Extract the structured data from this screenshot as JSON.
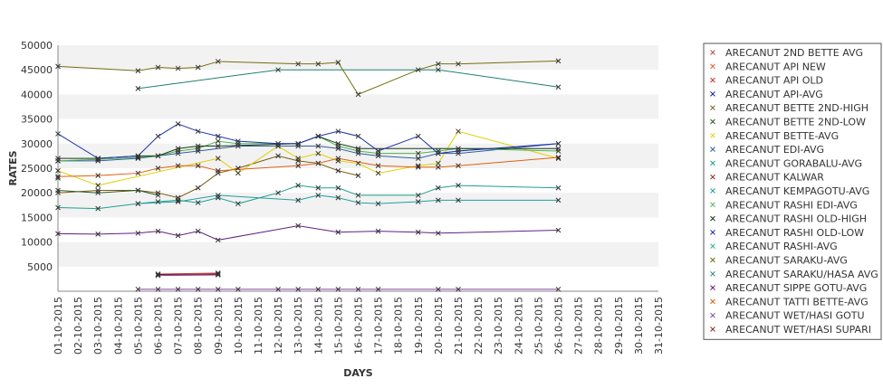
{
  "chart_data": {
    "type": "line",
    "xlabel": "DAYS",
    "ylabel": "RATES",
    "ylim": [
      0,
      50000
    ],
    "y_ticks": [
      5000,
      10000,
      15000,
      20000,
      25000,
      30000,
      35000,
      40000,
      45000,
      50000
    ],
    "x": [
      "01-10-2015",
      "02-10-2015",
      "03-10-2015",
      "04-10-2015",
      "05-10-2015",
      "06-10-2015",
      "07-10-2015",
      "08-10-2015",
      "09-10-2015",
      "10-10-2015",
      "11-10-2015",
      "12-10-2015",
      "13-10-2015",
      "14-10-2015",
      "15-10-2015",
      "16-10-2015",
      "17-10-2015",
      "18-10-2015",
      "19-10-2015",
      "20-10-2015",
      "21-10-2015",
      "22-10-2015",
      "23-10-2015",
      "24-10-2015",
      "25-10-2015",
      "26-10-2015",
      "27-10-2015",
      "28-10-2015",
      "29-10-2015",
      "30-10-2015",
      "31-10-2015"
    ],
    "grid": "horizontal-bands",
    "legend_position": "right",
    "series": [
      {
        "name": "ARECANUT 2ND BETTE AVG",
        "color": "#b34c4c",
        "values": [
          23000,
          null,
          null,
          null,
          null,
          null,
          null,
          null,
          null,
          null,
          null,
          null,
          null,
          null,
          null,
          null,
          null,
          null,
          null,
          null,
          null,
          null,
          null,
          null,
          null,
          null,
          null,
          null,
          null,
          null,
          null
        ]
      },
      {
        "name": "ARECANUT API NEW",
        "color": "#e05020",
        "values": [
          null,
          null,
          null,
          null,
          null,
          3500,
          null,
          null,
          3700,
          null,
          null,
          null,
          null,
          null,
          null,
          null,
          null,
          null,
          null,
          null,
          null,
          null,
          null,
          null,
          null,
          null,
          null,
          null,
          null,
          null,
          null
        ]
      },
      {
        "name": "ARECANUT API OLD",
        "color": "#d03030",
        "values": [
          null,
          null,
          null,
          null,
          null,
          3200,
          null,
          null,
          3300,
          null,
          null,
          null,
          null,
          null,
          null,
          null,
          null,
          null,
          null,
          null,
          null,
          null,
          null,
          null,
          null,
          null,
          null,
          null,
          null,
          null,
          null
        ]
      },
      {
        "name": "ARECANUT API-AVG",
        "color": "#2020a0",
        "values": [
          null,
          null,
          null,
          null,
          null,
          3400,
          null,
          null,
          3500,
          null,
          null,
          null,
          null,
          null,
          null,
          null,
          null,
          null,
          null,
          null,
          null,
          null,
          null,
          null,
          null,
          null,
          null,
          null,
          null,
          null,
          null
        ]
      },
      {
        "name": "ARECANUT BETTE 2ND-HIGH",
        "color": "#7a5a10",
        "values": [
          20000,
          null,
          20500,
          null,
          20500,
          20000,
          19000,
          21000,
          24000,
          25000,
          null,
          27500,
          26500,
          26000,
          24500,
          23500,
          null,
          null,
          null,
          null,
          null,
          null,
          null,
          null,
          null,
          null,
          null,
          null,
          null,
          null,
          null
        ]
      },
      {
        "name": "ARECANUT BETTE 2ND-LOW",
        "color": "#2a5a2a",
        "values": [
          20500,
          null,
          20000,
          null,
          20500,
          19500,
          null,
          null,
          null,
          null,
          null,
          null,
          null,
          null,
          null,
          null,
          null,
          null,
          null,
          null,
          null,
          null,
          null,
          null,
          null,
          null,
          null,
          null,
          null,
          null,
          null
        ]
      },
      {
        "name": "ARECANUT BETTE-AVG",
        "color": "#e0d000",
        "values": [
          24500,
          null,
          21500,
          null,
          null,
          null,
          null,
          null,
          27000,
          24000,
          null,
          29500,
          27000,
          28000,
          26500,
          26000,
          24000,
          null,
          25500,
          26000,
          32500,
          null,
          null,
          null,
          null,
          27000,
          null,
          null,
          null,
          null,
          null
        ]
      },
      {
        "name": "ARECANUT EDI-AVG",
        "color": "#3060a0",
        "values": [
          26500,
          null,
          26500,
          null,
          27000,
          null,
          28000,
          28500,
          null,
          29500,
          null,
          29500,
          29500,
          29500,
          29000,
          28000,
          27500,
          null,
          27000,
          28000,
          28000,
          null,
          null,
          null,
          null,
          30000,
          null,
          null,
          null,
          null,
          null
        ]
      },
      {
        "name": "ARECANUT GORABALU-AVG",
        "color": "#20a090",
        "values": [
          17000,
          null,
          16800,
          null,
          17800,
          18200,
          18500,
          18000,
          19000,
          17800,
          null,
          20000,
          21500,
          21000,
          21000,
          19500,
          null,
          null,
          19500,
          21000,
          21500,
          null,
          null,
          null,
          null,
          21000,
          null,
          null,
          null,
          null,
          null
        ]
      },
      {
        "name": "ARECANUT KALWAR",
        "color": "#802020",
        "values": [
          null,
          null,
          null,
          null,
          null,
          null,
          null,
          null,
          null,
          null,
          null,
          null,
          null,
          null,
          null,
          null,
          null,
          null,
          null,
          null,
          null,
          null,
          null,
          null,
          null,
          null,
          null,
          null,
          null,
          null,
          null
        ]
      },
      {
        "name": "ARECANUT KEMPAGOTU-AVG",
        "color": "#20a0a0",
        "values": [
          null,
          null,
          null,
          null,
          17800,
          null,
          18200,
          null,
          19500,
          null,
          null,
          null,
          18500,
          19500,
          19000,
          18000,
          17800,
          null,
          18200,
          18500,
          18500,
          null,
          null,
          null,
          null,
          18500,
          null,
          null,
          null,
          null,
          null
        ]
      },
      {
        "name": "ARECANUT RASHI EDI-AVG",
        "color": "#50b050",
        "values": [
          26500,
          null,
          26800,
          null,
          27200,
          27500,
          28500,
          29000,
          30500,
          30000,
          null,
          30000,
          30000,
          31500,
          29500,
          28500,
          28000,
          null,
          28000,
          28500,
          29000,
          null,
          null,
          null,
          null,
          28500,
          null,
          null,
          null,
          null,
          null
        ]
      },
      {
        "name": "ARECANUT RASHI OLD-HIGH",
        "color": "#1a3a1a",
        "values": [
          27000,
          null,
          27000,
          null,
          27500,
          27500,
          29000,
          29500,
          29500,
          null,
          null,
          null,
          30000,
          31500,
          30000,
          29000,
          null,
          null,
          null,
          null,
          null,
          null,
          null,
          null,
          null,
          29000,
          null,
          null,
          null,
          null,
          null
        ]
      },
      {
        "name": "ARECANUT RASHI OLD-LOW",
        "color": "#2030b0",
        "values": [
          32000,
          null,
          27000,
          null,
          27500,
          31500,
          34000,
          32500,
          31500,
          30500,
          null,
          30000,
          30000,
          31500,
          32500,
          31500,
          28500,
          null,
          31500,
          28000,
          28500,
          null,
          null,
          null,
          null,
          30000,
          null,
          null,
          null,
          null,
          null
        ]
      },
      {
        "name": "ARECANUT RASHI-AVG",
        "color": "#20b080",
        "values": [
          null,
          null,
          null,
          null,
          null,
          null,
          null,
          null,
          null,
          null,
          null,
          null,
          null,
          null,
          null,
          null,
          null,
          null,
          null,
          null,
          null,
          null,
          null,
          null,
          null,
          null,
          null,
          null,
          null,
          null,
          null
        ]
      },
      {
        "name": "ARECANUT SARAKU-AVG",
        "color": "#707010",
        "values": [
          45700,
          null,
          null,
          null,
          44800,
          45500,
          45300,
          45500,
          46700,
          null,
          null,
          null,
          46200,
          46200,
          46500,
          40000,
          null,
          null,
          45000,
          46200,
          46200,
          null,
          null,
          null,
          null,
          46800,
          null,
          null,
          null,
          null,
          null
        ]
      },
      {
        "name": "ARECANUT SARAKU/HASA AVG",
        "color": "#208070",
        "values": [
          null,
          null,
          null,
          null,
          41200,
          null,
          null,
          null,
          null,
          null,
          null,
          45000,
          null,
          null,
          null,
          null,
          null,
          null,
          null,
          45000,
          null,
          null,
          null,
          null,
          null,
          41500,
          null,
          null,
          null,
          null,
          null
        ]
      },
      {
        "name": "ARECANUT SIPPE GOTU-AVG",
        "color": "#602080",
        "values": [
          11700,
          null,
          11600,
          null,
          11800,
          12200,
          11300,
          12200,
          10400,
          null,
          null,
          null,
          13300,
          null,
          12000,
          null,
          12200,
          null,
          12000,
          11800,
          null,
          null,
          null,
          null,
          null,
          12400,
          null,
          null,
          null,
          null,
          null
        ]
      },
      {
        "name": "ARECANUT TATTI BETTE-AVG",
        "color": "#e06010",
        "values": [
          23300,
          null,
          23500,
          null,
          24000,
          25000,
          25500,
          25500,
          24500,
          null,
          null,
          null,
          25500,
          26000,
          27000,
          null,
          25500,
          null,
          25200,
          25200,
          25500,
          null,
          null,
          null,
          null,
          27200,
          null,
          null,
          null,
          null,
          null
        ]
      },
      {
        "name": "ARECANUT WET/HASI GOTU",
        "color": "#8040a0",
        "values": [
          null,
          null,
          null,
          null,
          400,
          400,
          400,
          400,
          400,
          400,
          null,
          400,
          400,
          400,
          400,
          400,
          400,
          null,
          null,
          400,
          400,
          null,
          null,
          null,
          null,
          400,
          null,
          null,
          null,
          null,
          null
        ]
      },
      {
        "name": "ARECANUT WET/HASI SUPARI",
        "color": "#803030",
        "values": [
          null,
          null,
          null,
          null,
          null,
          null,
          null,
          null,
          null,
          null,
          null,
          null,
          null,
          null,
          null,
          null,
          null,
          null,
          null,
          null,
          null,
          null,
          null,
          null,
          null,
          null,
          null,
          null,
          null,
          null,
          null
        ]
      }
    ]
  }
}
